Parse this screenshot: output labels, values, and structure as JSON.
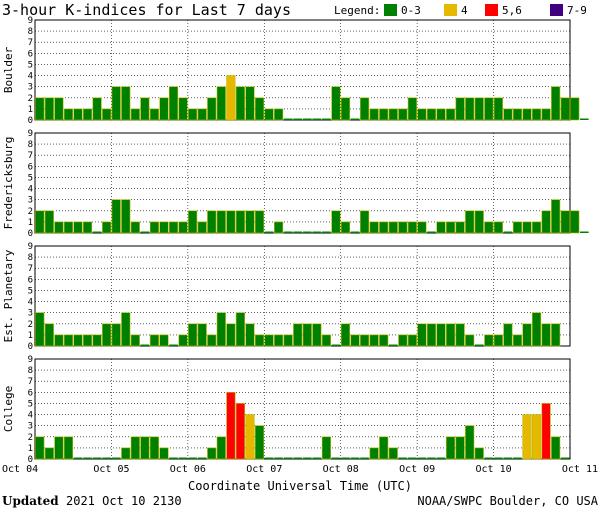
{
  "title": "3-hour K-indices for Last 7 days",
  "legend": {
    "label": "Legend:",
    "items": [
      {
        "label": "0-3",
        "color": "#008000"
      },
      {
        "label": "4",
        "color": "#e6b800"
      },
      {
        "label": "5,6",
        "color": "#ff0000"
      },
      {
        "label": "7-9",
        "color": "#40007f"
      }
    ]
  },
  "footer": {
    "updated_label": "Updated",
    "updated_value": "2021 Oct 10 2130",
    "source": "NOAA/SWPC Boulder, CO USA"
  },
  "chart_data": {
    "type": "bar",
    "xlabel": "Coordinate Universal Time (UTC)",
    "x_ticks": [
      "Oct 04",
      "Oct 05",
      "Oct 06",
      "Oct 07",
      "Oct 08",
      "Oct 09",
      "Oct 10",
      "Oct 11"
    ],
    "y_ticks": [
      "0",
      "1",
      "2",
      "3",
      "4",
      "5",
      "6",
      "7",
      "8",
      "9"
    ],
    "ylim": [
      0,
      9
    ],
    "bars_per_day": 8,
    "grid": true,
    "panels": [
      {
        "name": "Boulder",
        "values": [
          2,
          2,
          2,
          1,
          1,
          1,
          2,
          1,
          3,
          3,
          1,
          2,
          1,
          2,
          3,
          2,
          1,
          1,
          2,
          3,
          4,
          3,
          3,
          2,
          1,
          1,
          0,
          0,
          0,
          0,
          0,
          3,
          2,
          0,
          2,
          1,
          1,
          1,
          1,
          2,
          1,
          1,
          1,
          1,
          2,
          2,
          2,
          2,
          2,
          1,
          1,
          1,
          1,
          1,
          3,
          2,
          2,
          0
        ]
      },
      {
        "name": "Fredericksburg",
        "values": [
          2,
          2,
          1,
          1,
          1,
          1,
          0,
          1,
          3,
          3,
          1,
          0,
          1,
          1,
          1,
          1,
          2,
          1,
          2,
          2,
          2,
          2,
          2,
          2,
          0,
          1,
          0,
          0,
          0,
          0,
          0,
          2,
          1,
          0,
          2,
          1,
          1,
          1,
          1,
          1,
          1,
          0,
          1,
          1,
          1,
          2,
          2,
          1,
          1,
          0,
          1,
          1,
          1,
          2,
          3,
          2,
          2,
          0
        ]
      },
      {
        "name": "Est. Planetary",
        "values": [
          3,
          2,
          1,
          1,
          1,
          1,
          1,
          2,
          2,
          3,
          1,
          0,
          1,
          1,
          0,
          1,
          2,
          2,
          1,
          3,
          2,
          3,
          2,
          1,
          1,
          1,
          1,
          2,
          2,
          2,
          1,
          0,
          2,
          1,
          1,
          1,
          1,
          0,
          1,
          1,
          2,
          2,
          2,
          2,
          2,
          1,
          0,
          1,
          1,
          2,
          1,
          2,
          3,
          2,
          2,
          null
        ]
      },
      {
        "name": "College",
        "values": [
          2,
          1,
          2,
          2,
          0,
          0,
          0,
          0,
          0,
          1,
          2,
          2,
          2,
          1,
          0,
          0,
          0,
          0,
          1,
          2,
          6,
          5,
          4,
          3,
          0,
          0,
          0,
          0,
          0,
          0,
          2,
          0,
          0,
          0,
          0,
          1,
          2,
          1,
          0,
          0,
          0,
          0,
          0,
          2,
          2,
          3,
          1,
          0,
          0,
          0,
          0,
          4,
          4,
          5,
          2,
          0
        ]
      }
    ]
  }
}
